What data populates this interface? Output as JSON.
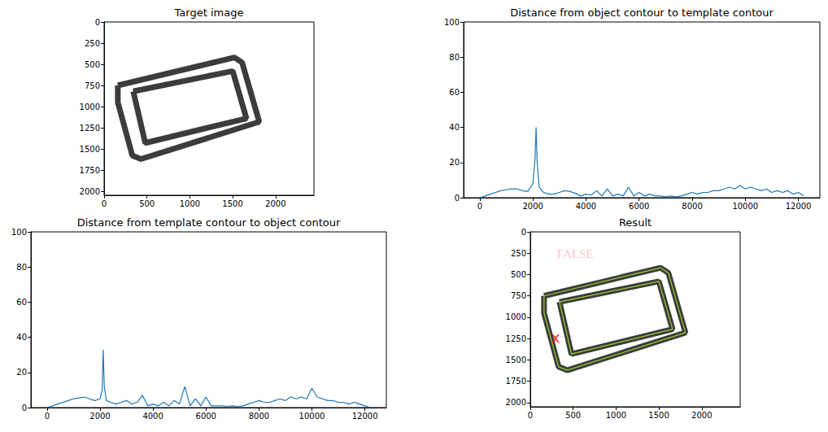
{
  "chart_data": [
    {
      "type": "image",
      "title": "Target image",
      "xlim": [
        0,
        2448
      ],
      "ylim": [
        2048,
        0
      ],
      "xticks": [
        0,
        500,
        1000,
        1500,
        2000
      ],
      "yticks": [
        0,
        250,
        500,
        750,
        1000,
        1250,
        1500,
        1750,
        2000
      ],
      "grid": false,
      "series": [
        {
          "type": "line",
          "color": "#3c3c3c",
          "line_style": "thick",
          "x": [
            160,
            1520,
            1610,
            1810,
            430,
            330,
            160,
            160
          ],
          "values": [
            750,
            420,
            480,
            1180,
            1620,
            1580,
            950,
            750
          ]
        },
        {
          "type": "line",
          "color": "#3c3c3c",
          "line_style": "thick",
          "x": [
            340,
            1500,
            1660,
            480,
            340
          ],
          "values": [
            820,
            580,
            1140,
            1430,
            820
          ]
        }
      ]
    },
    {
      "type": "line",
      "title": "Distance from object contour to template contour",
      "xlim": [
        -610,
        12810
      ],
      "ylim": [
        0,
        100
      ],
      "xticks": [
        0,
        2000,
        4000,
        6000,
        8000,
        10000,
        12000
      ],
      "yticks": [
        0,
        20,
        40,
        60,
        80,
        100
      ],
      "grid": false,
      "series": [
        {
          "color": "#1f77b4",
          "line_style": "solid",
          "x": [
            0,
            200,
            400,
            600,
            800,
            1000,
            1200,
            1400,
            1600,
            1800,
            2000,
            2080,
            2120,
            2160,
            2240,
            2400,
            2600,
            2800,
            3000,
            3200,
            3400,
            3600,
            3800,
            4000,
            4200,
            4400,
            4600,
            4800,
            5000,
            5200,
            5400,
            5600,
            5800,
            6000,
            6200,
            6400,
            6600,
            6800,
            7000,
            7200,
            7400,
            7600,
            7800,
            8000,
            8200,
            8400,
            8600,
            8800,
            9000,
            9200,
            9400,
            9600,
            9800,
            10000,
            10200,
            10400,
            10600,
            10800,
            11000,
            11200,
            11400,
            11600,
            11800,
            12000,
            12200
          ],
          "values": [
            0,
            1,
            2,
            3,
            4,
            4.5,
            5,
            5,
            4,
            3.5,
            8,
            22,
            40,
            20,
            6,
            3,
            2,
            2,
            3,
            4,
            3.5,
            2.5,
            1,
            2,
            1.5,
            4,
            1,
            5,
            1,
            2,
            1,
            6,
            1,
            3,
            1,
            2,
            1,
            1,
            0.5,
            1,
            0.5,
            1,
            2,
            3,
            2,
            3,
            3,
            4,
            4,
            5,
            6,
            5,
            7,
            5,
            6,
            5,
            4,
            5,
            3,
            4,
            3,
            4,
            2,
            3,
            1
          ]
        }
      ]
    },
    {
      "type": "line",
      "title": "Distance from template contour to object contour",
      "xlim": [
        -610,
        12810
      ],
      "ylim": [
        0,
        100
      ],
      "xticks": [
        0,
        2000,
        4000,
        6000,
        8000,
        10000,
        12000
      ],
      "yticks": [
        0,
        20,
        40,
        60,
        80,
        100
      ],
      "grid": false,
      "series": [
        {
          "color": "#1f77b4",
          "line_style": "solid",
          "x": [
            0,
            200,
            400,
            600,
            800,
            1000,
            1200,
            1400,
            1600,
            1800,
            2000,
            2080,
            2120,
            2160,
            2240,
            2400,
            2600,
            2800,
            3000,
            3200,
            3400,
            3600,
            3800,
            4000,
            4200,
            4400,
            4600,
            4800,
            5000,
            5200,
            5400,
            5600,
            5800,
            6000,
            6200,
            6400,
            6600,
            6800,
            7000,
            7200,
            7400,
            7600,
            7800,
            8000,
            8200,
            8400,
            8600,
            8800,
            9000,
            9200,
            9400,
            9600,
            9800,
            10000,
            10200,
            10400,
            10600,
            10800,
            11000,
            11200,
            11400,
            11600,
            11800,
            12000,
            12200
          ],
          "values": [
            0,
            1,
            2,
            3,
            4,
            5,
            5.5,
            6,
            5,
            4,
            5,
            10,
            33,
            12,
            4,
            3,
            2,
            3,
            4,
            2,
            3,
            7,
            1,
            2,
            1,
            3,
            1,
            4,
            2,
            12,
            1,
            5,
            1,
            6,
            1,
            1,
            1,
            0.5,
            1,
            0.5,
            1,
            2,
            3,
            4,
            3,
            3,
            4,
            5,
            4,
            6,
            5,
            6,
            5,
            11,
            6,
            5,
            4,
            4,
            3,
            3,
            2,
            3,
            2,
            1,
            0
          ]
        }
      ]
    },
    {
      "type": "image",
      "title": "Result",
      "xlim": [
        0,
        2448
      ],
      "ylim": [
        2048,
        0
      ],
      "xticks": [
        0,
        500,
        1000,
        1500,
        2000
      ],
      "yticks": [
        0,
        250,
        500,
        750,
        1000,
        1250,
        1500,
        1750,
        2000
      ],
      "grid": false,
      "series": [
        {
          "type": "line",
          "color": "#3c3c3c",
          "line_style": "thick",
          "x": [
            160,
            1520,
            1610,
            1810,
            430,
            330,
            160,
            160
          ],
          "values": [
            750,
            420,
            480,
            1180,
            1620,
            1580,
            950,
            750
          ]
        },
        {
          "type": "line",
          "color": "#3c3c3c",
          "line_style": "thick",
          "x": [
            340,
            1500,
            1660,
            480,
            340
          ],
          "values": [
            820,
            580,
            1140,
            1430,
            820
          ]
        },
        {
          "type": "line",
          "color": "#9acd32",
          "line_style": "solid",
          "x": [
            160,
            1520,
            1610,
            1810,
            430,
            330,
            160,
            160
          ],
          "values": [
            750,
            420,
            480,
            1180,
            1620,
            1580,
            950,
            750
          ]
        },
        {
          "type": "line",
          "color": "#9acd32",
          "line_style": "solid",
          "x": [
            340,
            1500,
            1660,
            480,
            340
          ],
          "values": [
            820,
            580,
            1140,
            1430,
            820
          ]
        },
        {
          "type": "scatter",
          "color": "#ff0000",
          "marker": "x",
          "x": [
            294
          ],
          "values": [
            1248
          ]
        }
      ],
      "annotations": [
        {
          "text": "FALSE",
          "x": 310,
          "y": 260,
          "color": "#ffb6c1"
        }
      ]
    }
  ]
}
